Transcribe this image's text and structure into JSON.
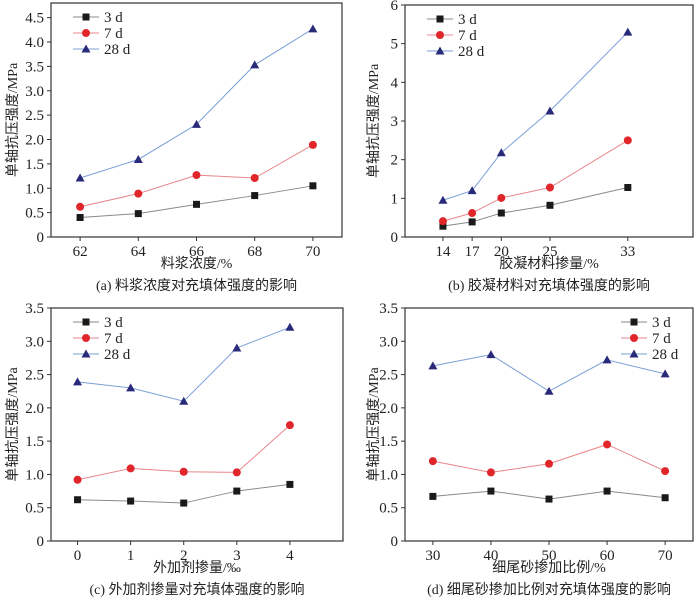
{
  "chart_data": [
    {
      "type": "line",
      "caption": "(a) 料浆浓度对充填体强度的影响",
      "xlabel": "料浆浓度/%",
      "ylabel": "单轴抗压强度/MPa",
      "x": [
        62,
        64,
        66,
        68,
        70
      ],
      "xticks": [
        "62",
        "64",
        "66",
        "68",
        "70"
      ],
      "xlim": [
        61,
        71
      ],
      "ylim": [
        0,
        4.8
      ],
      "yticks": [
        "0",
        "0.5",
        "1.0",
        "1.5",
        "2.0",
        "2.5",
        "3.0",
        "3.5",
        "4.0",
        "4.5"
      ],
      "ytick_values": [
        0,
        0.5,
        1.0,
        1.5,
        2.0,
        2.5,
        3.0,
        3.5,
        4.0,
        4.5
      ],
      "legend_position": "top-left",
      "series": [
        {
          "name": "3 d",
          "marker": "square",
          "color": "#1a1a1a",
          "line_color": "#8a8a8a",
          "values": [
            0.4,
            0.48,
            0.67,
            0.85,
            1.05
          ]
        },
        {
          "name": "7 d",
          "marker": "circle",
          "color": "#e0262b",
          "line_color": "#e8868a",
          "values": [
            0.62,
            0.89,
            1.27,
            1.21,
            1.89
          ]
        },
        {
          "name": "28 d",
          "marker": "triangle",
          "color": "#2a2a7a",
          "line_color": "#7aa0d8",
          "values": [
            1.21,
            1.59,
            2.31,
            3.53,
            4.27
          ]
        }
      ]
    },
    {
      "type": "line",
      "caption": "(b) 胶凝材料对充填体强度的影响",
      "xlabel": "胶凝材料掺量/%",
      "ylabel": "单轴抗压强度/MPa",
      "x": [
        14,
        17,
        20,
        25,
        33
      ],
      "xticks": [
        "14",
        "17",
        "20",
        "25",
        "33"
      ],
      "xlim": [
        10.1,
        39.7
      ],
      "ylim": [
        0,
        6
      ],
      "yticks": [
        "0",
        "1",
        "2",
        "3",
        "4",
        "5",
        "6"
      ],
      "ytick_values": [
        0,
        1,
        2,
        3,
        4,
        5,
        6
      ],
      "legend_position": "top-left",
      "series": [
        {
          "name": "3 d",
          "marker": "square",
          "color": "#1a1a1a",
          "line_color": "#8a8a8a",
          "values": [
            0.28,
            0.39,
            0.62,
            0.82,
            1.28
          ]
        },
        {
          "name": "7 d",
          "marker": "circle",
          "color": "#e0262b",
          "line_color": "#e8868a",
          "values": [
            0.41,
            0.62,
            1.01,
            1.28,
            2.5
          ]
        },
        {
          "name": "28 d",
          "marker": "triangle",
          "color": "#2a2a7a",
          "line_color": "#7aa0d8",
          "values": [
            0.95,
            1.2,
            2.18,
            3.26,
            5.3
          ]
        }
      ]
    },
    {
      "type": "line",
      "caption": "(c) 外加剂掺量对充填体强度的影响",
      "xlabel": "外加剂掺量/‰",
      "ylabel": "单轴抗压强度/MPa",
      "x": [
        0,
        1,
        2,
        3,
        4
      ],
      "xticks": [
        "0",
        "1",
        "2",
        "3",
        "4"
      ],
      "xlim": [
        -0.5,
        5.0
      ],
      "ylim": [
        0,
        3.5
      ],
      "yticks": [
        "0",
        "0.5",
        "1.0",
        "1.5",
        "2.0",
        "2.5",
        "3.0",
        "3.5"
      ],
      "ytick_values": [
        0,
        0.5,
        1.0,
        1.5,
        2.0,
        2.5,
        3.0,
        3.5
      ],
      "legend_position": "top-left",
      "series": [
        {
          "name": "3 d",
          "marker": "square",
          "color": "#1a1a1a",
          "line_color": "#8a8a8a",
          "values": [
            0.62,
            0.6,
            0.57,
            0.75,
            0.85
          ]
        },
        {
          "name": "7 d",
          "marker": "circle",
          "color": "#e0262b",
          "line_color": "#e8868a",
          "values": [
            0.92,
            1.09,
            1.04,
            1.03,
            1.74
          ]
        },
        {
          "name": "28 d",
          "marker": "triangle",
          "color": "#2a2a7a",
          "line_color": "#7aa0d8",
          "values": [
            2.39,
            2.3,
            2.1,
            2.9,
            3.21
          ]
        }
      ]
    },
    {
      "type": "line",
      "caption": "(d) 细尾砂掺加比例对充填体强度的影响",
      "xlabel": "细尾砂掺加比例/%",
      "ylabel": "单轴抗压强度/MPa",
      "x": [
        30,
        40,
        50,
        60,
        70
      ],
      "xticks": [
        "30",
        "40",
        "50",
        "60",
        "70"
      ],
      "xlim": [
        25.2,
        74.8
      ],
      "ylim": [
        0,
        3.5
      ],
      "yticks": [
        "0",
        "0.5",
        "1.0",
        "1.5",
        "2.0",
        "2.5",
        "3.0",
        "3.5"
      ],
      "ytick_values": [
        0,
        0.5,
        1.0,
        1.5,
        2.0,
        2.5,
        3.0,
        3.5
      ],
      "legend_position": "top-right",
      "series": [
        {
          "name": "3 d",
          "marker": "square",
          "color": "#1a1a1a",
          "line_color": "#8a8a8a",
          "values": [
            0.67,
            0.75,
            0.63,
            0.75,
            0.65
          ]
        },
        {
          "name": "7 d",
          "marker": "circle",
          "color": "#e0262b",
          "line_color": "#e8868a",
          "values": [
            1.2,
            1.03,
            1.16,
            1.45,
            1.05
          ]
        },
        {
          "name": "28 d",
          "marker": "triangle",
          "color": "#2a2a7a",
          "line_color": "#7aa0d8",
          "values": [
            2.63,
            2.8,
            2.25,
            2.72,
            2.51
          ]
        }
      ]
    }
  ]
}
